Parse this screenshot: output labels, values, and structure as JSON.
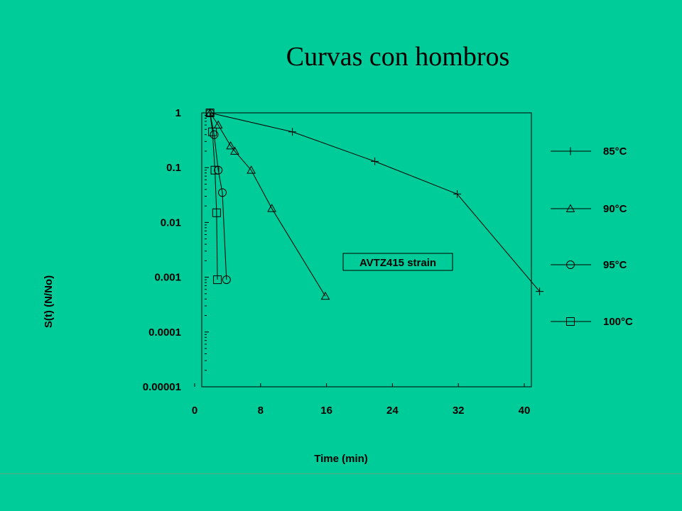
{
  "chart_data": {
    "type": "line",
    "title": "Curvas con hombros",
    "xlabel": "Time (min)",
    "ylabel": "S(t) (N/No)",
    "xlim": [
      0,
      40
    ],
    "ylim": [
      1e-05,
      1
    ],
    "yscale": "log",
    "x_ticks": [
      "0",
      "8",
      "16",
      "24",
      "32",
      "40"
    ],
    "y_ticks": [
      "1",
      "0.1",
      "0.01",
      "0.001",
      "0.0001",
      "0.00001"
    ],
    "annotation": "AVTZ415 strain",
    "legend_position": "right",
    "series": [
      {
        "name": "85°C",
        "marker": "plus",
        "x": [
          1,
          11,
          21,
          31,
          41
        ],
        "y": [
          1,
          0.45,
          0.13,
          0.033,
          0.00055
        ]
      },
      {
        "name": "90°C",
        "marker": "triangle",
        "x": [
          1,
          2,
          3.5,
          4,
          6,
          8.5,
          15
        ],
        "y": [
          1,
          0.6,
          0.25,
          0.2,
          0.09,
          0.018,
          0.00045
        ]
      },
      {
        "name": "95°C",
        "marker": "circle",
        "x": [
          1,
          1.5,
          2,
          2.5,
          3
        ],
        "y": [
          1,
          0.4,
          0.09,
          0.035,
          0.0009
        ]
      },
      {
        "name": "100°C",
        "marker": "square",
        "x": [
          1,
          1.3,
          1.6,
          1.8,
          1.9
        ],
        "y": [
          1,
          0.45,
          0.09,
          0.015,
          0.0009
        ]
      }
    ]
  }
}
